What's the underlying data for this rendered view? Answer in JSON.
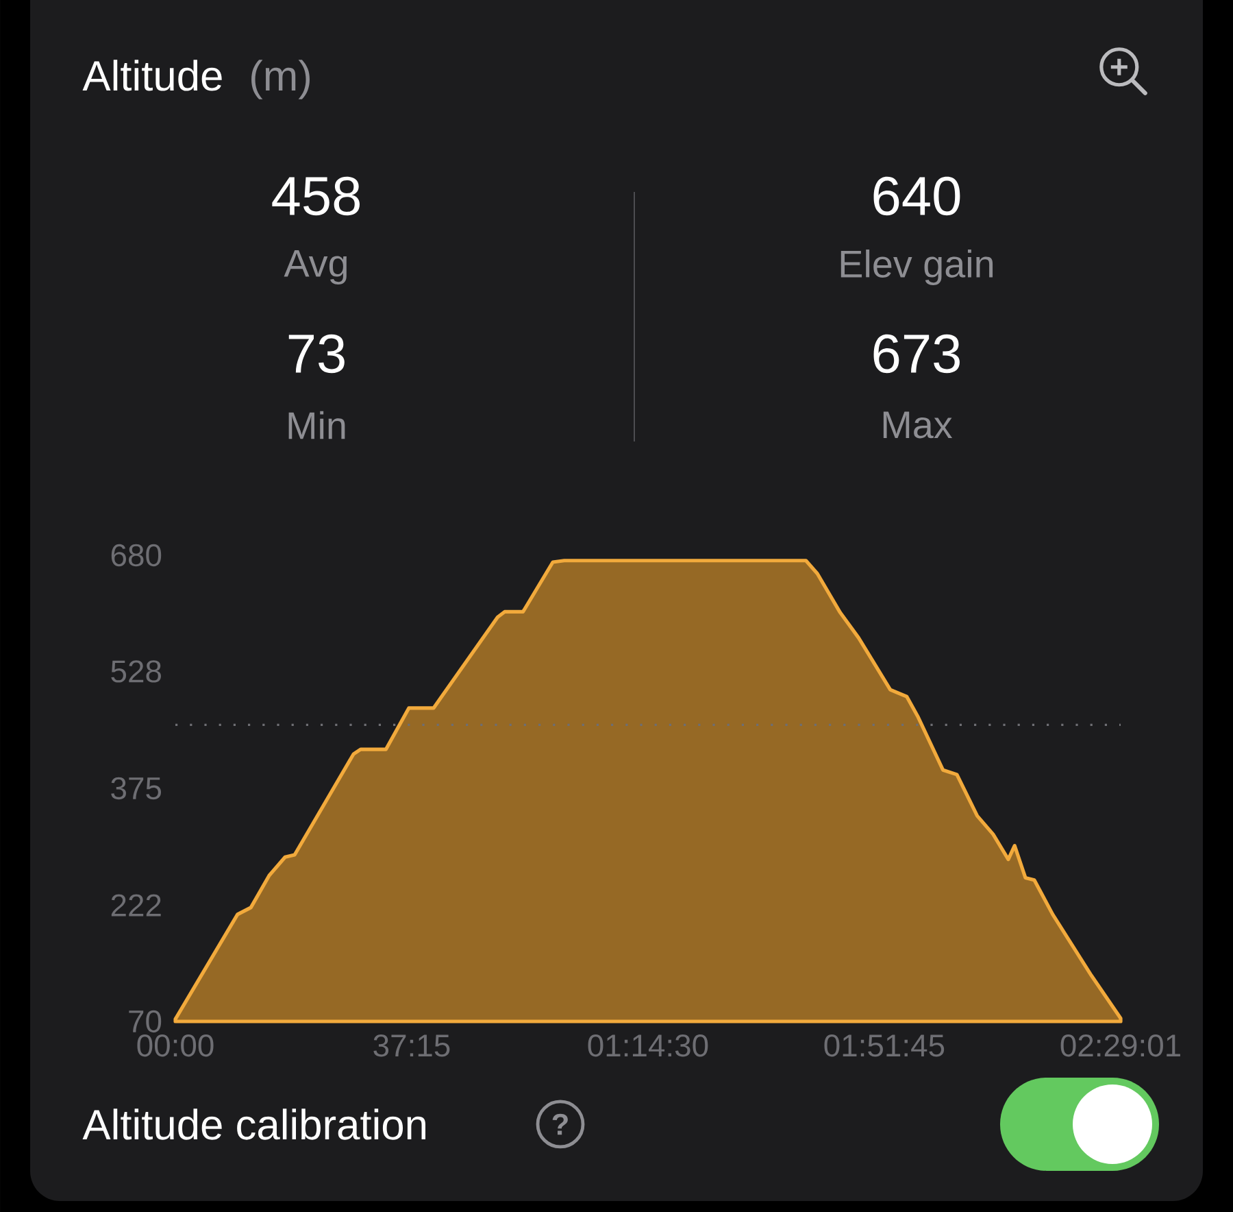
{
  "chart_data": {
    "type": "area",
    "title": "Altitude",
    "subtitle": "(m)",
    "annotations": [
      "458",
      "Avg",
      "73",
      "Min",
      "640",
      "Elev gain",
      "673",
      "Max",
      "Altitude calibration",
      "?"
    ],
    "x": [
      0,
      9.8,
      11.9,
      14.8,
      17.3,
      18.8,
      28.1,
      29.2,
      33.2,
      36.8,
      40.7,
      50.8,
      51.9,
      54.8,
      59.5,
      61.3,
      97.6,
      99.4,
      101.2,
      104.8,
      107.7,
      112.7,
      115.3,
      117.1,
      121.0,
      123.2,
      126.4,
      128.9,
      131.3,
      132.3,
      134.0,
      135.4,
      138.3,
      144.4,
      149.0167
    ],
    "series": [
      {
        "color": "#f2aa3c",
        "values": [
          73,
          210,
          219,
          261,
          285,
          288,
          420,
          426,
          426,
          480,
          480,
          599,
          606,
          606,
          671,
          673,
          673,
          673,
          656,
          605,
          572,
          504,
          495,
          468,
          399,
          393,
          339,
          315,
          282,
          300,
          258,
          255,
          210,
          130,
          74
        ]
      }
    ],
    "xlim": [
      0,
      149.0167
    ],
    "xticks": [
      {
        "value": 0,
        "label": "00:00"
      },
      {
        "value": 37.25,
        "label": "37:15"
      },
      {
        "value": 74.5,
        "label": "01:14:30"
      },
      {
        "value": 111.75,
        "label": "01:51:45"
      },
      {
        "value": 149.0167,
        "label": "02:29:01"
      }
    ],
    "ylim": [
      70,
      680
    ],
    "yticks": [
      70,
      222,
      375,
      528,
      680
    ],
    "ref_lines": [
      {
        "axis": "y",
        "value": 458,
        "color": "#6e6e73",
        "line_style": "dotted"
      }
    ]
  }
}
